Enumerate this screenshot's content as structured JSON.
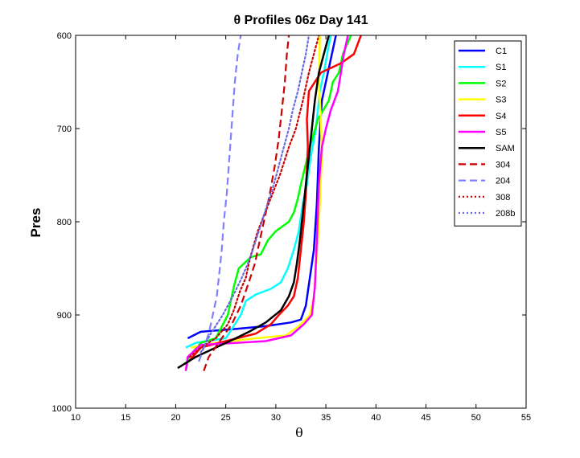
{
  "chart_data": {
    "type": "line",
    "title": "θ Profiles 06z Day 141",
    "xlabel": "θ",
    "ylabel": "Pres",
    "xlim": [
      10,
      55
    ],
    "ylim": [
      1000,
      600
    ],
    "y_reversed": true,
    "x_ticks": [
      10,
      15,
      20,
      25,
      30,
      35,
      40,
      45,
      50,
      55
    ],
    "y_ticks": [
      600,
      700,
      800,
      900,
      1000
    ],
    "grid": false,
    "legend_position": "top-right",
    "series": [
      {
        "name": "C1",
        "color": "#0000ff",
        "style": "solid",
        "points": [
          [
            21.2,
            925
          ],
          [
            22.5,
            918
          ],
          [
            26,
            915
          ],
          [
            29,
            912
          ],
          [
            31.5,
            908
          ],
          [
            32.5,
            905
          ],
          [
            33,
            890
          ],
          [
            33.4,
            860
          ],
          [
            33.8,
            830
          ],
          [
            34.1,
            780
          ],
          [
            34.3,
            720
          ],
          [
            34.6,
            670
          ],
          [
            35.2,
            640
          ],
          [
            36,
            600
          ]
        ]
      },
      {
        "name": "S1",
        "color": "#00ffff",
        "style": "solid",
        "points": [
          [
            21,
            935
          ],
          [
            22,
            930
          ],
          [
            23,
            928
          ],
          [
            25,
            925
          ],
          [
            26.5,
            900
          ],
          [
            27,
            885
          ],
          [
            28,
            878
          ],
          [
            29.5,
            872
          ],
          [
            30.5,
            865
          ],
          [
            31.2,
            850
          ],
          [
            31.8,
            830
          ],
          [
            32.3,
            810
          ],
          [
            32.7,
            780
          ],
          [
            33.1,
            760
          ],
          [
            33.5,
            730
          ],
          [
            34,
            700
          ],
          [
            34.4,
            660
          ],
          [
            34.8,
            640
          ],
          [
            35.3,
            610
          ],
          [
            35.5,
            600
          ]
        ]
      },
      {
        "name": "S2",
        "color": "#00ff00",
        "style": "solid",
        "points": [
          [
            21,
            960
          ],
          [
            21.3,
            945
          ],
          [
            22.5,
            930
          ],
          [
            24,
            925
          ],
          [
            25.2,
            900
          ],
          [
            25.8,
            870
          ],
          [
            26.3,
            850
          ],
          [
            27.5,
            838
          ],
          [
            28.5,
            835
          ],
          [
            29.2,
            820
          ],
          [
            30,
            810
          ],
          [
            31.3,
            800
          ],
          [
            31.8,
            790
          ],
          [
            32.2,
            775
          ],
          [
            32.5,
            760
          ],
          [
            33.4,
            720
          ],
          [
            34.2,
            690
          ],
          [
            35.3,
            670
          ],
          [
            35.7,
            650
          ],
          [
            36.3,
            640
          ],
          [
            36.7,
            620
          ],
          [
            37.5,
            600
          ]
        ]
      },
      {
        "name": "S3",
        "color": "#ffff00",
        "style": "solid",
        "points": [
          [
            21.5,
            935
          ],
          [
            24,
            930
          ],
          [
            28,
            925
          ],
          [
            31,
            922
          ],
          [
            32.3,
            912
          ],
          [
            33.4,
            900
          ],
          [
            33.8,
            880
          ],
          [
            34.2,
            820
          ],
          [
            34.4,
            780
          ],
          [
            34.6,
            730
          ],
          [
            34.5,
            690
          ],
          [
            34.3,
            650
          ],
          [
            34.4,
            600
          ]
        ]
      },
      {
        "name": "S4",
        "color": "#ff0000",
        "style": "solid",
        "points": [
          [
            21.3,
            950
          ],
          [
            22.5,
            935
          ],
          [
            25,
            928
          ],
          [
            28,
            920
          ],
          [
            29.5,
            910
          ],
          [
            30.3,
            900
          ],
          [
            31.2,
            890
          ],
          [
            31.8,
            880
          ],
          [
            32.2,
            860
          ],
          [
            32.5,
            830
          ],
          [
            32.8,
            800
          ],
          [
            33,
            770
          ],
          [
            33.2,
            720
          ],
          [
            33.1,
            690
          ],
          [
            33.3,
            660
          ],
          [
            34.5,
            640
          ],
          [
            36.5,
            630
          ],
          [
            37.8,
            620
          ],
          [
            38.5,
            600
          ]
        ]
      },
      {
        "name": "S5",
        "color": "#ff00ff",
        "style": "solid",
        "points": [
          [
            21,
            960
          ],
          [
            21.2,
            945
          ],
          [
            22.5,
            932
          ],
          [
            26,
            930
          ],
          [
            29,
            928
          ],
          [
            31.5,
            922
          ],
          [
            32.8,
            910
          ],
          [
            33.6,
            900
          ],
          [
            33.9,
            870
          ],
          [
            34.1,
            820
          ],
          [
            34.3,
            760
          ],
          [
            34.6,
            720
          ],
          [
            35,
            700
          ],
          [
            35.5,
            680
          ],
          [
            36.2,
            660
          ],
          [
            36.5,
            640
          ],
          [
            36.8,
            620
          ],
          [
            37.2,
            600
          ]
        ]
      },
      {
        "name": "SAM",
        "color": "#000000",
        "style": "solid",
        "points": [
          [
            20.2,
            957
          ],
          [
            22,
            945
          ],
          [
            24,
            935
          ],
          [
            26,
            925
          ],
          [
            27.5,
            917
          ],
          [
            29,
            908
          ],
          [
            30.5,
            895
          ],
          [
            31.3,
            880
          ],
          [
            31.8,
            865
          ],
          [
            32.1,
            845
          ],
          [
            32.4,
            820
          ],
          [
            32.7,
            790
          ],
          [
            33,
            760
          ],
          [
            33.3,
            730
          ],
          [
            33.6,
            700
          ],
          [
            33.9,
            670
          ],
          [
            34.3,
            640
          ],
          [
            34.8,
            620
          ],
          [
            35.3,
            600
          ]
        ]
      },
      {
        "name": "304",
        "color": "#cc0000",
        "style": "dashed",
        "points": [
          [
            22.8,
            960
          ],
          [
            23.3,
            945
          ],
          [
            24.6,
            925
          ],
          [
            25.6,
            910
          ],
          [
            26.5,
            890
          ],
          [
            27.3,
            865
          ],
          [
            27.9,
            845
          ],
          [
            28.3,
            825
          ],
          [
            28.8,
            800
          ],
          [
            29.4,
            770
          ],
          [
            29.9,
            740
          ],
          [
            30.3,
            710
          ],
          [
            30.6,
            680
          ],
          [
            30.9,
            650
          ],
          [
            31.1,
            620
          ],
          [
            31.3,
            600
          ]
        ]
      },
      {
        "name": "204",
        "color": "#8080ff",
        "style": "dashed",
        "points": [
          [
            22.3,
            950
          ],
          [
            22.8,
            935
          ],
          [
            23.3,
            920
          ],
          [
            23.7,
            900
          ],
          [
            24.1,
            880
          ],
          [
            24.3,
            860
          ],
          [
            24.6,
            830
          ],
          [
            24.8,
            800
          ],
          [
            25.1,
            770
          ],
          [
            25.3,
            740
          ],
          [
            25.5,
            710
          ],
          [
            25.7,
            680
          ],
          [
            25.9,
            650
          ],
          [
            26.2,
            620
          ],
          [
            26.5,
            600
          ]
        ]
      },
      {
        "name": "308",
        "color": "#cc0000",
        "style": "dotted",
        "points": [
          [
            21.4,
            945
          ],
          [
            22.5,
            935
          ],
          [
            24,
            925
          ],
          [
            25.2,
            910
          ],
          [
            25.8,
            895
          ],
          [
            26.4,
            875
          ],
          [
            27,
            860
          ],
          [
            27.4,
            840
          ],
          [
            28.2,
            810
          ],
          [
            29.3,
            780
          ],
          [
            30.4,
            750
          ],
          [
            31.3,
            720
          ],
          [
            32,
            700
          ],
          [
            32.7,
            670
          ],
          [
            33.3,
            640
          ],
          [
            33.8,
            620
          ],
          [
            34.3,
            600
          ]
        ]
      },
      {
        "name": "208b",
        "color": "#6a6ae0",
        "style": "dotted",
        "points": [
          [
            22.5,
            940
          ],
          [
            23.5,
            920
          ],
          [
            24.7,
            900
          ],
          [
            25.7,
            880
          ],
          [
            26.6,
            860
          ],
          [
            27.4,
            840
          ],
          [
            28,
            820
          ],
          [
            28.6,
            800
          ],
          [
            29.2,
            780
          ],
          [
            29.8,
            760
          ],
          [
            30.3,
            740
          ],
          [
            30.8,
            720
          ],
          [
            31.3,
            700
          ],
          [
            31.7,
            680
          ],
          [
            32.2,
            660
          ],
          [
            32.6,
            640
          ],
          [
            33,
            620
          ],
          [
            33.3,
            600
          ]
        ]
      }
    ]
  }
}
